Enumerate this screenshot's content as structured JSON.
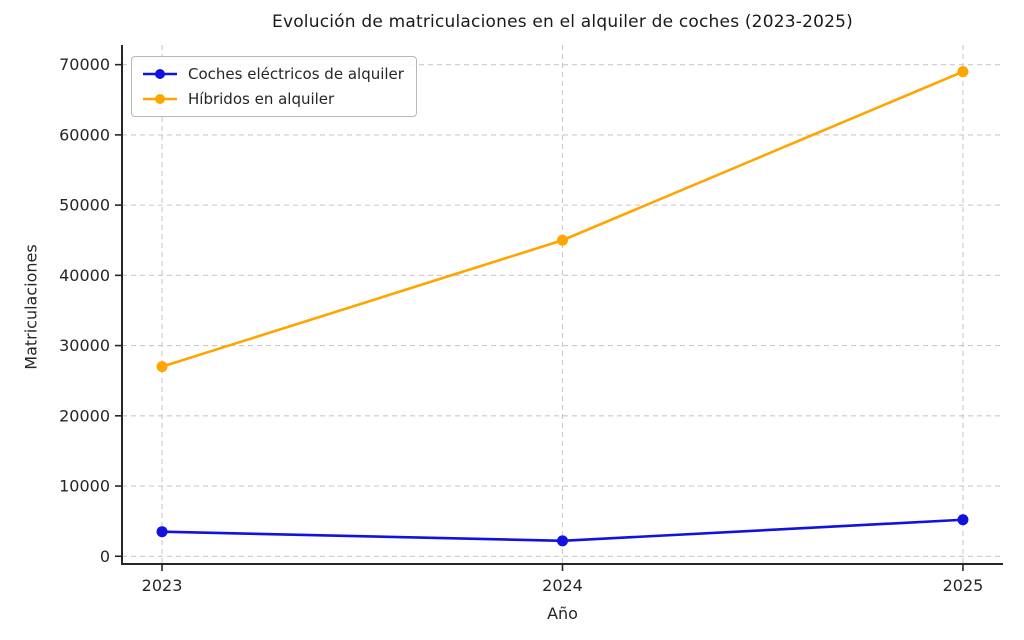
{
  "chart_data": {
    "type": "line",
    "title": "Evolución de matriculaciones en el alquiler de coches (2023-2025)",
    "xlabel": "Año",
    "ylabel": "Matriculaciones",
    "x": [
      2023,
      2024,
      2025
    ],
    "x_tick_labels": [
      "2023",
      "2024",
      "2025"
    ],
    "series": [
      {
        "name": "Coches eléctricos de alquiler",
        "color": "#1212e0",
        "values": [
          3500,
          2200,
          5200
        ]
      },
      {
        "name": "Híbridos en alquiler",
        "color": "#ffa500",
        "values": [
          27000,
          45000,
          69000
        ]
      }
    ],
    "yticks": [
      0,
      10000,
      20000,
      30000,
      40000,
      50000,
      60000,
      70000
    ],
    "ylim": [
      -1100,
      72800
    ],
    "xlim": [
      2022.9,
      2025.1
    ],
    "grid": true,
    "grid_style": "dashed",
    "legend_position": "upper left",
    "marker": "circle",
    "colors": {
      "grid": "#c9c9c9",
      "spine": "#262626",
      "text": "#262626",
      "background": "#ffffff"
    }
  }
}
